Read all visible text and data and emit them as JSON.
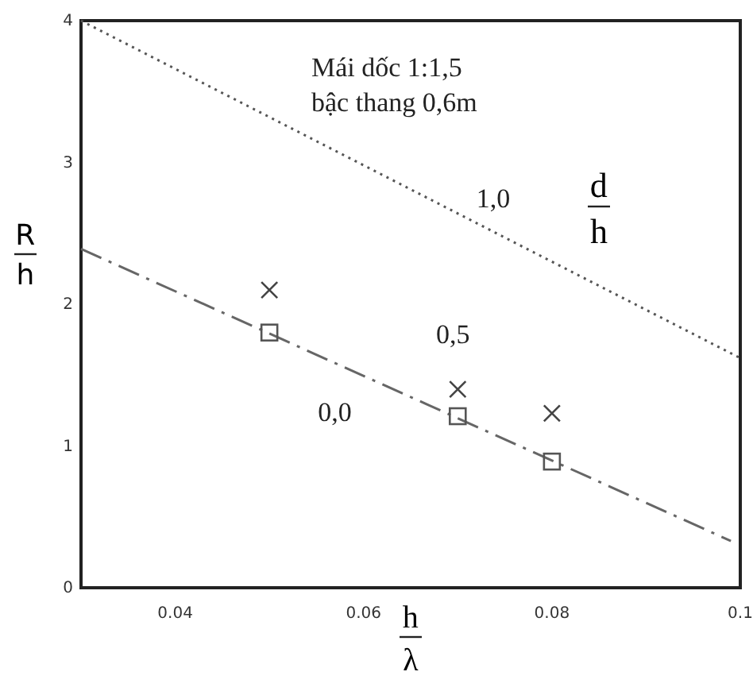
{
  "chart_data": {
    "type": "scatter",
    "title": "Mái dốc 1:1,5\nbậc thang 0,6m",
    "xlabel": "h/λ",
    "ylabel": "R/h",
    "legend_title": "d/h",
    "xlim": [
      0.03,
      0.1
    ],
    "ylim": [
      0,
      4
    ],
    "xticks": [
      0.04,
      0.06,
      0.08,
      {
        "value": 0.1,
        "label": "0.1"
      }
    ],
    "yticks": [
      0,
      1,
      2,
      3,
      4
    ],
    "grid": false,
    "series": [
      {
        "name": "1,0",
        "type": "line",
        "line_style": "dotted",
        "marker": "none",
        "color": "#555555",
        "x": [
          0.03,
          0.1
        ],
        "values": [
          4.0,
          1.62
        ]
      },
      {
        "name": "0,0",
        "type": "line",
        "line_style": "dashed",
        "marker": "none",
        "color": "#666666",
        "x": [
          0.03,
          0.099
        ],
        "values": [
          2.39,
          0.33
        ]
      },
      {
        "name": "0,5",
        "marker": "cross",
        "color": "#444444",
        "x": [
          0.05,
          0.07,
          0.08
        ],
        "values": [
          2.1,
          1.4,
          1.23
        ]
      },
      {
        "marker": "square",
        "color": "#555555",
        "x": [
          0.05,
          0.07,
          0.08
        ],
        "values": [
          1.8,
          1.21,
          0.89
        ]
      }
    ]
  }
}
